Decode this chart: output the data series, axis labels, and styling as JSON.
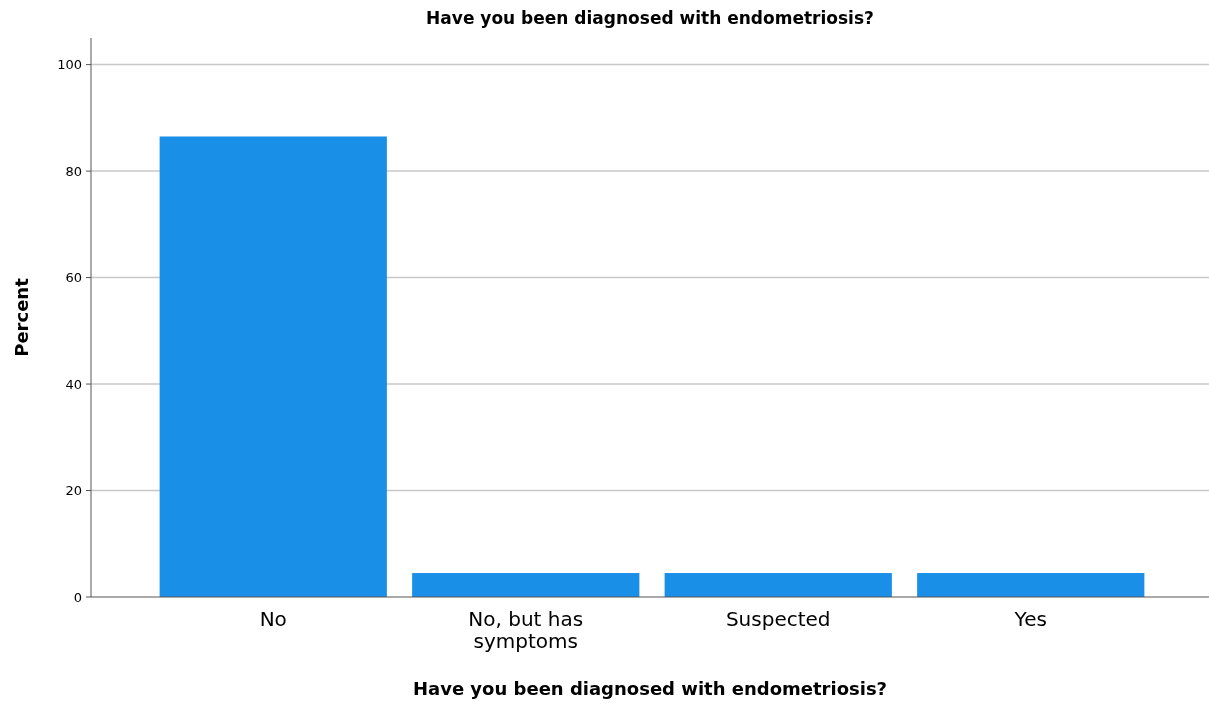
{
  "chart_data": {
    "type": "bar",
    "title": "Have you been diagnosed with endometriosis?",
    "xlabel": "Have you been diagnosed with endometriosis?",
    "ylabel": "Percent",
    "categories": [
      "No",
      "No, but has symptoms",
      "Suspected",
      "Yes"
    ],
    "values": [
      86.5,
      4.5,
      4.5,
      4.5
    ],
    "color": "#1a8fe8",
    "ylim": [
      0,
      105
    ],
    "yticks": [
      0,
      20,
      40,
      60,
      80,
      100
    ],
    "grid": "y"
  }
}
